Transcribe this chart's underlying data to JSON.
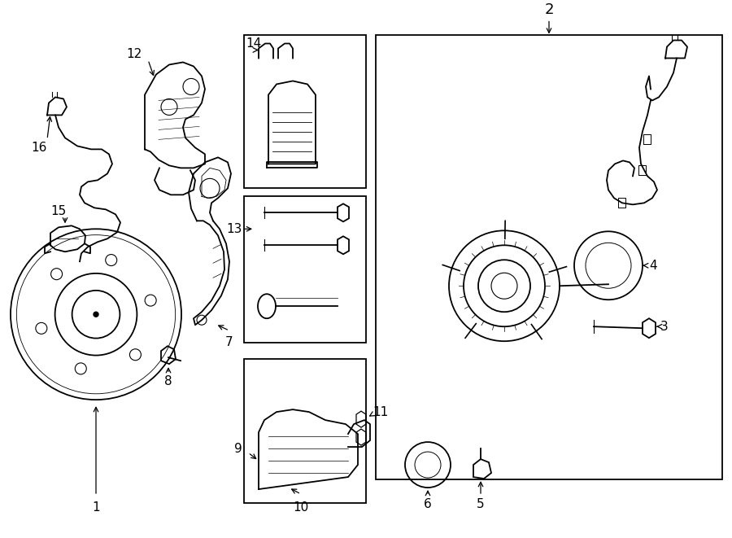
{
  "bg_color": "#ffffff",
  "line_color": "#000000",
  "fig_width": 9.0,
  "fig_height": 6.61,
  "dpi": 100,
  "xlim": [
    0,
    900
  ],
  "ylim": [
    0,
    661
  ]
}
